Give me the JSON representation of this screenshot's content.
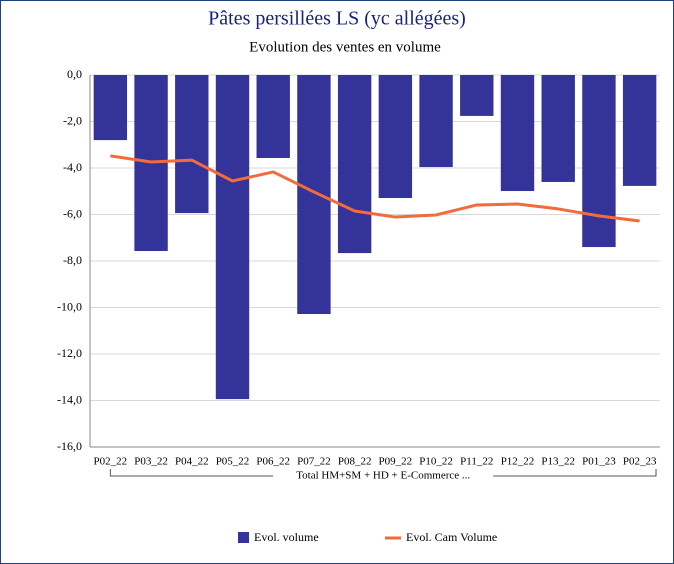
{
  "chart_data": {
    "type": "bar_line",
    "title": "Pâtes persillées LS (yc allégées)",
    "subtitle": "Evolution des ventes en volume",
    "categories": [
      "P02_22",
      "P03_22",
      "P04_22",
      "P05_22",
      "P06_22",
      "P07_22",
      "P08_22",
      "P09_22",
      "P10_22",
      "P11_22",
      "P12_22",
      "P13_22",
      "P01_23",
      "P02_23"
    ],
    "category_group": "Total HM+SM + HD + E-Commerce ...",
    "series": [
      {
        "name": "Evol. volume",
        "type": "bar",
        "color": "#333399",
        "values": [
          -2.8,
          -7.57,
          -5.94,
          -13.94,
          -3.57,
          -10.28,
          -7.66,
          -5.29,
          -3.96,
          -1.76,
          -4.99,
          -4.6,
          -7.4,
          -4.77
        ]
      },
      {
        "name": "Evol. Cam Volume",
        "type": "line",
        "color": "#f26b3a",
        "values": [
          -3.48,
          -3.74,
          -3.66,
          -4.56,
          -4.17,
          -5.03,
          -5.85,
          -6.11,
          -6.02,
          -5.59,
          -5.55,
          -5.76,
          -6.06,
          -6.28
        ]
      }
    ],
    "ylim": [
      -16,
      0
    ],
    "yticks": [
      {
        "value": 0,
        "label": "0,0"
      },
      {
        "value": -2,
        "label": "-2,0"
      },
      {
        "value": -4,
        "label": "-4,0"
      },
      {
        "value": -6,
        "label": "-6,0"
      },
      {
        "value": -8,
        "label": "-8,0"
      },
      {
        "value": -10,
        "label": "-10,0"
      },
      {
        "value": -12,
        "label": "-12,0"
      },
      {
        "value": -14,
        "label": "-14,0"
      },
      {
        "value": -16,
        "label": "-16,0"
      }
    ],
    "grid": true,
    "legend": "bottom"
  }
}
